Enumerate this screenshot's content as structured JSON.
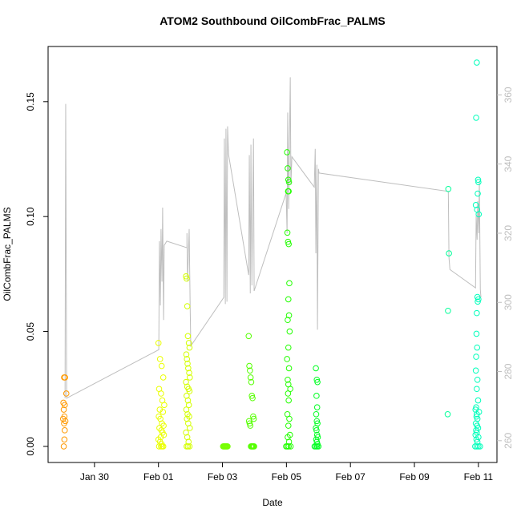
{
  "chart_data": {
    "type": "scatter",
    "title": "ATOM2 Southbound OilCombFrac_PALMS",
    "x_label": "Date",
    "y_label": "OilCombFrac_PALMS",
    "xlim": [
      28.55,
      42.58
    ],
    "xticks": [
      {
        "value": 30,
        "label": "Jan 30"
      },
      {
        "value": 32,
        "label": "Feb 01"
      },
      {
        "value": 34,
        "label": "Feb 03"
      },
      {
        "value": 36,
        "label": "Feb 05"
      },
      {
        "value": 38,
        "label": "Feb 07"
      },
      {
        "value": 40,
        "label": "Feb 09"
      },
      {
        "value": 42,
        "label": "Feb 11"
      }
    ],
    "ylim": [
      -0.007,
      0.174
    ],
    "yticks": [
      {
        "value": 0,
        "label": "0.00"
      },
      {
        "value": 0.05,
        "label": "0.05"
      },
      {
        "value": 0.1,
        "label": "0.10"
      },
      {
        "value": 0.15,
        "label": "0.15"
      }
    ],
    "y2lim": [
      253.7,
      374
    ],
    "y2ticks": [
      260,
      280,
      300,
      320,
      340,
      360
    ],
    "y2_color": "#bebebe",
    "series": [
      {
        "color": "#ff9900",
        "x": [
          29.08,
          29.05,
          29.12,
          29.03,
          29.07,
          29.04,
          29.06,
          29.02,
          29.09,
          29.05,
          29.07,
          29.06,
          29.04
        ],
        "values": [
          0.03,
          0.03,
          0.023,
          0.019,
          0.018,
          0.016,
          0.013,
          0.012,
          0.011,
          0.01,
          0.007,
          0.003,
          0
        ]
      },
      {
        "color": "#eaff00",
        "x": [
          32.0,
          32.05,
          32.1,
          32.15,
          32.02,
          32.08,
          32.12,
          32.18,
          32.04,
          32.14,
          32.01,
          32.06,
          32.11,
          32.16,
          32.03,
          32.09,
          32.13,
          32.17,
          32.07,
          32.0,
          32.05,
          32.1,
          32.15,
          32.02,
          32.08,
          32.12
        ],
        "values": [
          0.045,
          0.038,
          0.035,
          0.03,
          0.025,
          0.023,
          0.02,
          0.018,
          0.016,
          0.015,
          0.013,
          0.012,
          0.01,
          0.009,
          0.008,
          0.007,
          0.006,
          0.005,
          0.004,
          0.003,
          0.002,
          0.001,
          0,
          0,
          0,
          0
        ]
      },
      {
        "color": "#d4ff00",
        "x": [
          32.86,
          32.88,
          32.9,
          32.92,
          32.95,
          32.97,
          32.87,
          32.89,
          32.91,
          32.93,
          32.96,
          32.98,
          32.86,
          32.9,
          32.94,
          32.97,
          32.88,
          32.92,
          32.95,
          32.87,
          32.91,
          32.96,
          32.89,
          32.93,
          32.98,
          32.86,
          32.9,
          32.94,
          32.88,
          32.92,
          32.97
        ],
        "values": [
          0.074,
          0.073,
          0.061,
          0.048,
          0.045,
          0.043,
          0.04,
          0.038,
          0.036,
          0.034,
          0.032,
          0.03,
          0.028,
          0.026,
          0.025,
          0.024,
          0.022,
          0.02,
          0.018,
          0.016,
          0.014,
          0.013,
          0.012,
          0.01,
          0.008,
          0.006,
          0.004,
          0.002,
          0,
          0,
          0
        ]
      },
      {
        "color": "#77ff00",
        "x": [
          34.02,
          34.04,
          34.06,
          34.08,
          34.1,
          34.12,
          34.14,
          34.16
        ],
        "values": [
          0,
          0,
          0,
          0,
          0,
          0,
          0,
          0
        ]
      },
      {
        "color": "#55ff00",
        "x": [
          34.82,
          34.84,
          34.86,
          34.88,
          34.9,
          34.92,
          34.94,
          34.96,
          34.98,
          34.83,
          34.85,
          34.87,
          34.89,
          34.91,
          34.93,
          34.95,
          34.97,
          34.99
        ],
        "values": [
          0.048,
          0.035,
          0.033,
          0.03,
          0.028,
          0.022,
          0.021,
          0.013,
          0.012,
          0.011,
          0.01,
          0.009,
          0,
          0,
          0,
          0,
          0,
          0
        ]
      },
      {
        "color": "#22ff00",
        "x": [
          36.02,
          36.04,
          36.06,
          36.08,
          36.05,
          36.07,
          36.03,
          36.05,
          36.07,
          36.09,
          36.06,
          36.08,
          36.04,
          36.1,
          36.06,
          36.02,
          36.08,
          36.04,
          36.06,
          36.12,
          36.05,
          36.07,
          36.03,
          36.09,
          36.06,
          36.11,
          36.04,
          36.08,
          35.99,
          36.03,
          36.07,
          36.13
        ],
        "values": [
          0.128,
          0.121,
          0.116,
          0.115,
          0.111,
          0.111,
          0.093,
          0.089,
          0.088,
          0.071,
          0.064,
          0.057,
          0.055,
          0.05,
          0.043,
          0.038,
          0.034,
          0.029,
          0.027,
          0.025,
          0.023,
          0.02,
          0.014,
          0.012,
          0.009,
          0.005,
          0.004,
          0.002,
          0,
          0,
          0,
          0
        ]
      },
      {
        "color": "#00ff22",
        "x": [
          36.92,
          36.95,
          36.97,
          36.94,
          36.96,
          36.93,
          36.95,
          36.97,
          36.92,
          36.94,
          36.96,
          36.98,
          36.93,
          36.95,
          36.97,
          36.88,
          36.92,
          36.96,
          37.0
        ],
        "values": [
          0.034,
          0.029,
          0.028,
          0.022,
          0.017,
          0.014,
          0.011,
          0.01,
          0.008,
          0.007,
          0.005,
          0.004,
          0.003,
          0.002,
          0.001,
          0,
          0,
          0,
          0
        ]
      },
      {
        "color": "#00ff99",
        "x": [
          41.06,
          41.08,
          41.05,
          41.04
        ],
        "values": [
          0.112,
          0.084,
          0.059,
          0.014
        ]
      },
      {
        "color": "#00ffbb",
        "x": [
          41.95,
          41.93,
          41.99,
          42.0,
          41.98,
          41.92,
          41.96,
          42.01,
          41.97,
          42.0,
          41.98,
          41.95,
          41.94,
          41.96,
          41.93,
          41.92,
          41.97,
          41.95,
          41.99,
          41.93,
          41.91,
          42.02,
          41.95,
          41.94,
          41.97,
          41.92,
          41.96,
          41.99,
          41.93,
          41.95,
          41.91,
          42.0,
          41.94,
          41.97,
          41.9,
          41.95,
          42.0,
          42.05
        ],
        "values": [
          0.167,
          0.143,
          0.116,
          0.115,
          0.11,
          0.105,
          0.103,
          0.101,
          0.065,
          0.064,
          0.063,
          0.058,
          0.049,
          0.043,
          0.039,
          0.033,
          0.029,
          0.025,
          0.02,
          0.017,
          0.016,
          0.015,
          0.014,
          0.013,
          0.012,
          0.01,
          0.009,
          0.008,
          0.007,
          0.006,
          0.005,
          0.004,
          0.003,
          0.002,
          0,
          0,
          0,
          0
        ]
      },
      {
        "color": "#bebebe",
        "mode": "line",
        "axis": "y2",
        "x": [
          29.08,
          29.1,
          29.13,
          32.01,
          32.03,
          32.06,
          32.08,
          32.11,
          32.13,
          32.16,
          32.18,
          32.26,
          32.89,
          32.89,
          32.91,
          32.94,
          32.96,
          32.99,
          33.01,
          34.04,
          34.06,
          34.09,
          34.11,
          34.14,
          34.16,
          34.19,
          34.82,
          34.84,
          34.87,
          34.89,
          34.92,
          34.97,
          34.99,
          35.99,
          36.02,
          36.04,
          36.07,
          36.12,
          36.14,
          36.17,
          36.87,
          36.9,
          36.92,
          36.95,
          36.97,
          37.0,
          37.02,
          41.06,
          41.08,
          41.11,
          41.91,
          41.93,
          41.96,
          41.98,
          42.01,
          42.03,
          42.06,
          42.08
        ],
        "values": [
          272.3,
          357.4,
          272.3,
          286.3,
          317.7,
          299.1,
          321.2,
          306.0,
          327.4,
          294.9,
          316.5,
          317.7,
          315.8,
          320.0,
          306.0,
          315.3,
          321.2,
          299.1,
          287.4,
          301.4,
          347.4,
          299.5,
          350.2,
          300.2,
          350.9,
          342.8,
          307.9,
          342.6,
          302.6,
          345.6,
          304.9,
          347.4,
          303.3,
          331.6,
          320.0,
          354.9,
          327.0,
          365.1,
          334.0,
          342.1,
          333.3,
          344.4,
          314.2,
          339.8,
          292.1,
          338.6,
          337.4,
          332.1,
          313.0,
          309.5,
          304.2,
          325.1,
          318.1,
          329.3,
          320.0,
          335.1,
          303.7,
          301.4
        ]
      }
    ]
  }
}
